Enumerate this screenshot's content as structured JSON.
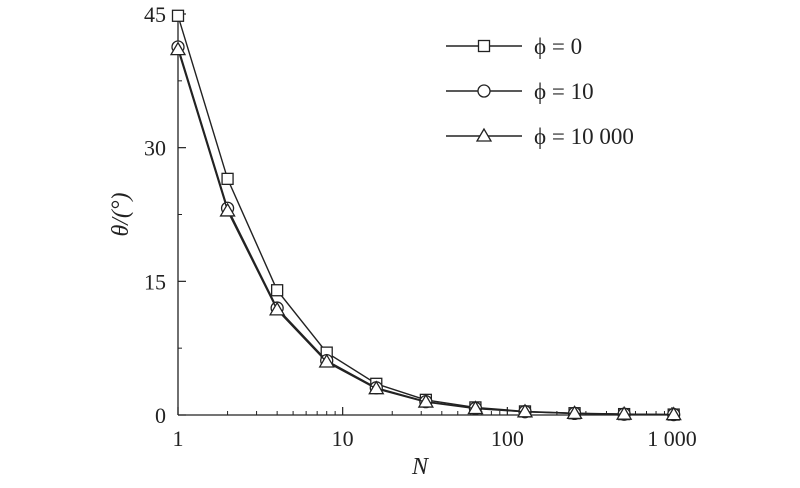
{
  "chart_data": {
    "type": "line",
    "xscale": "log",
    "xlabel": "N",
    "ylabel": "θ/(°)",
    "xlim": [
      1,
      1000
    ],
    "ylim": [
      0,
      45
    ],
    "grid": false,
    "legend_position": "top-right",
    "x_ticks": [
      {
        "value": 1,
        "label": "1"
      },
      {
        "value": 10,
        "label": "10"
      },
      {
        "value": 100,
        "label": "100"
      },
      {
        "value": 1000,
        "label": "1 000"
      }
    ],
    "y_ticks": [
      {
        "value": 0,
        "label": "0"
      },
      {
        "value": 15,
        "label": "15"
      },
      {
        "value": 30,
        "label": "30"
      },
      {
        "value": 45,
        "label": "45"
      }
    ],
    "x": [
      1,
      2,
      4,
      8,
      16,
      32,
      64,
      128,
      256,
      512,
      1024
    ],
    "series": [
      {
        "name": "ϕ = 0",
        "marker": "square",
        "values": [
          44.8,
          26.5,
          14.0,
          7.0,
          3.5,
          1.7,
          0.85,
          0.4,
          0.2,
          0.1,
          0.05
        ]
      },
      {
        "name": "ϕ = 10",
        "marker": "circle",
        "values": [
          41.3,
          23.2,
          12.0,
          6.1,
          3.05,
          1.5,
          0.75,
          0.37,
          0.18,
          0.09,
          0.05
        ]
      },
      {
        "name": "ϕ = 10 000",
        "marker": "triangle",
        "values": [
          41.0,
          22.9,
          11.8,
          5.95,
          2.95,
          1.45,
          0.72,
          0.36,
          0.18,
          0.09,
          0.04
        ]
      }
    ]
  }
}
